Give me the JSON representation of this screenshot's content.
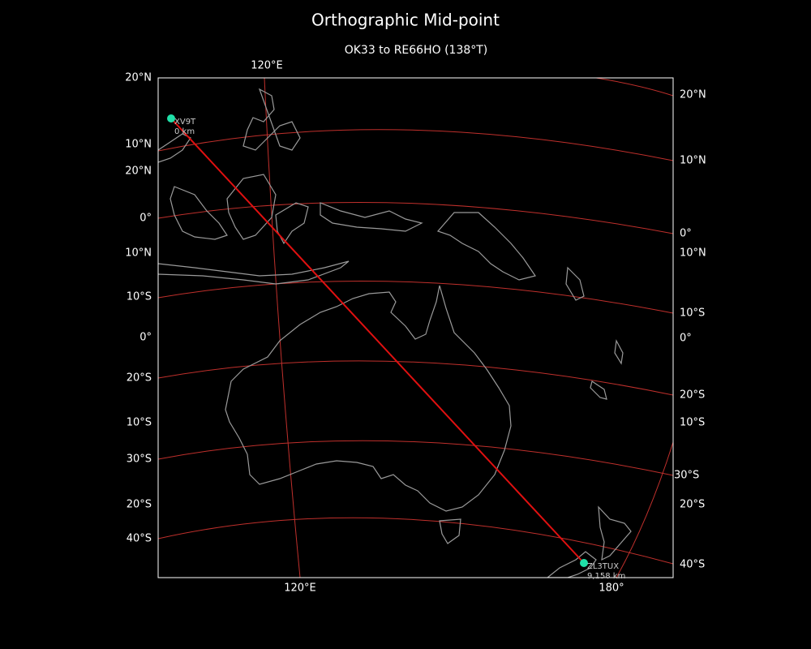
{
  "header": {
    "title": "Orthographic Mid-point",
    "subtitle": "OK33 to RE66HO (138°T)"
  },
  "map": {
    "top_labels": [
      "120°E"
    ],
    "bottom_labels": [
      "120°E",
      "180°"
    ],
    "left_labels": [
      "20°N",
      "10°N",
      "20°N",
      "0°",
      "10°N",
      "10°S",
      "0°",
      "20°S",
      "10°S",
      "30°S",
      "20°S",
      "40°S"
    ],
    "right_labels": [
      "20°N",
      "10°N",
      "0°",
      "10°N",
      "10°S",
      "0°",
      "20°S",
      "10°S",
      "30°S",
      "20°S",
      "40°S"
    ],
    "stations": [
      {
        "call": "XV9T",
        "distance": "0 km"
      },
      {
        "call": "ZL3TUX",
        "distance": "9,158 km"
      }
    ]
  }
}
